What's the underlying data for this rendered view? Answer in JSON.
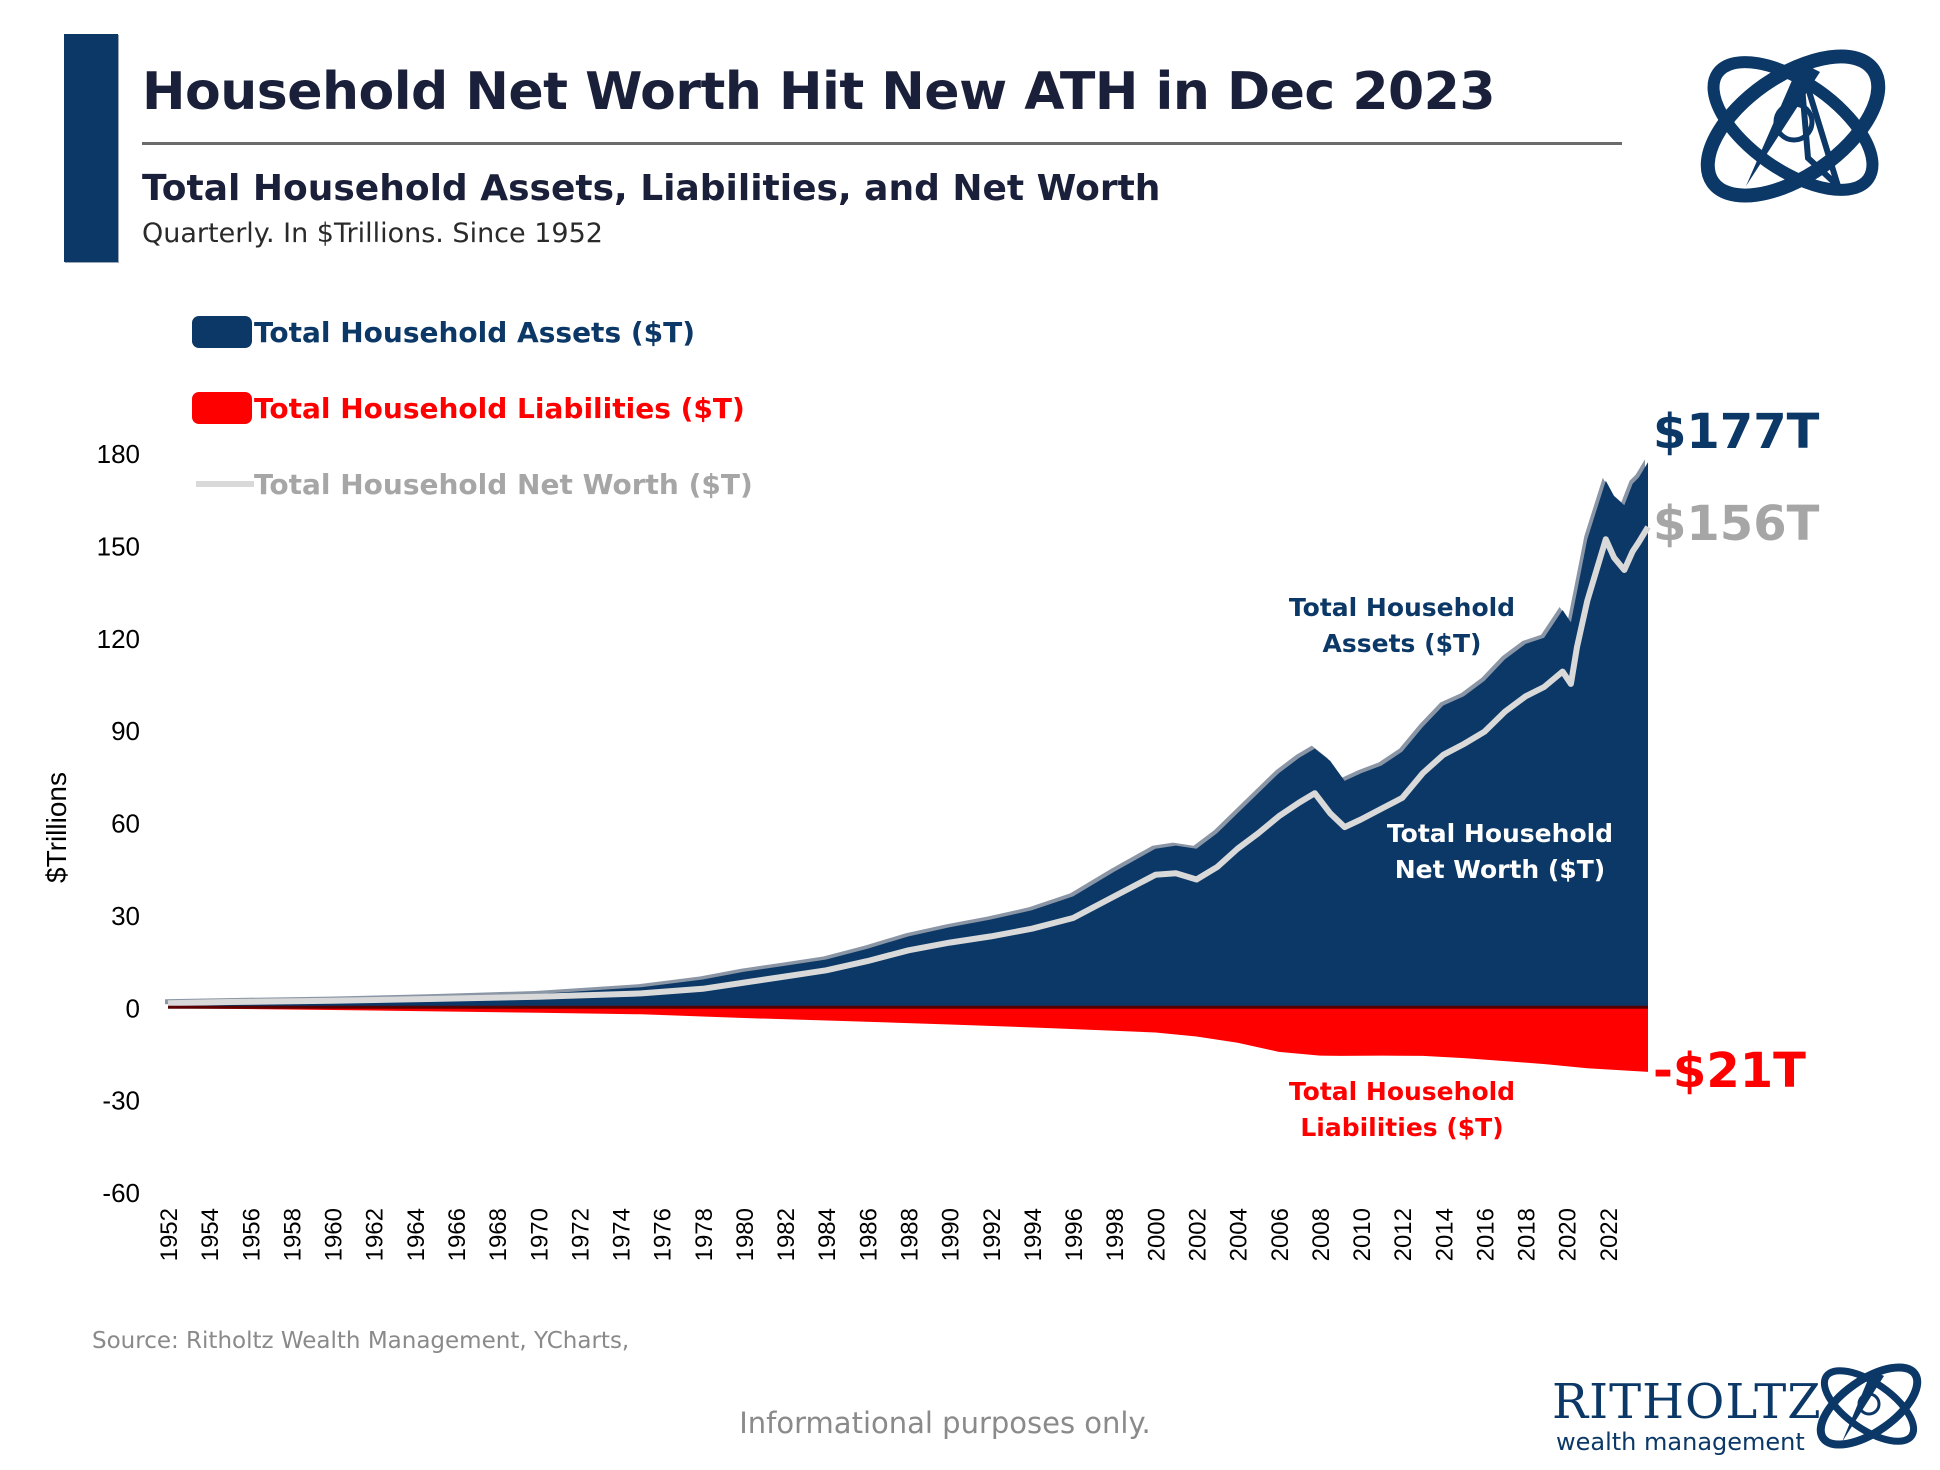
{
  "header": {
    "title": "Household Net Worth Hit New ATH in Dec 2023",
    "subtitle": "Total Household Assets, Liabilities, and Net Worth",
    "note": "Quarterly. In $Trillions. Since 1952"
  },
  "footer": {
    "source": "Source: Ritholtz Wealth Management, YCharts,",
    "disclaimer": "Informational purposes only.",
    "logo_word": "RITHOLTZ",
    "logo_sub": "wealth management"
  },
  "colors": {
    "navy": "#0b3866",
    "red": "#ff0000",
    "gray_line": "#d9d9d9",
    "gray_text": "#a6a6a6",
    "title_text": "#1a1f3a"
  },
  "icons": {
    "brand": "ritholtz-orbit-logo-icon"
  },
  "chart_data": {
    "type": "area",
    "ylabel": "$Trillions",
    "xlabel": "",
    "ylim": [
      -60,
      180
    ],
    "yticks": [
      180,
      150,
      120,
      90,
      60,
      30,
      0,
      -30,
      -60
    ],
    "xticks": [
      "1952",
      "1954",
      "1956",
      "1958",
      "1960",
      "1962",
      "1964",
      "1966",
      "1968",
      "1970",
      "1972",
      "1974",
      "1976",
      "1978",
      "1980",
      "1982",
      "1984",
      "1986",
      "1988",
      "1990",
      "1992",
      "1994",
      "1996",
      "1998",
      "2000",
      "2002",
      "2004",
      "2006",
      "2008",
      "2010",
      "2012",
      "2014",
      "2016",
      "2018",
      "2020",
      "2022"
    ],
    "xrange": [
      1952,
      2023.95
    ],
    "grid": false,
    "legend_position": "top-left",
    "legend": [
      {
        "label": "Total Household Assets ($T)",
        "color": "#0b3866"
      },
      {
        "label": "Total Household Liabilities ($T)",
        "color": "#ff0000"
      },
      {
        "label": "Total Household Net Worth ($T)",
        "color": "#a6a6a6"
      }
    ],
    "series": [
      {
        "name": "Total Household Assets ($T)",
        "color": "#0b3866",
        "points": [
          [
            1952,
            1.6
          ],
          [
            1955,
            2.0
          ],
          [
            1960,
            2.5
          ],
          [
            1965,
            3.3
          ],
          [
            1970,
            4.3
          ],
          [
            1975,
            6.5
          ],
          [
            1978,
            9.0
          ],
          [
            1980,
            11.5
          ],
          [
            1982,
            13.5
          ],
          [
            1984,
            15.5
          ],
          [
            1986,
            19.0
          ],
          [
            1988,
            23.0
          ],
          [
            1990,
            26.0
          ],
          [
            1992,
            28.5
          ],
          [
            1994,
            31.5
          ],
          [
            1996,
            36.0
          ],
          [
            1998,
            44.0
          ],
          [
            2000,
            51.5
          ],
          [
            2001,
            52.5
          ],
          [
            2002,
            51.5
          ],
          [
            2003,
            56.5
          ],
          [
            2004,
            63.0
          ],
          [
            2005,
            69.5
          ],
          [
            2006,
            76.0
          ],
          [
            2007,
            81.0
          ],
          [
            2007.75,
            84.0
          ],
          [
            2008.5,
            80.0
          ],
          [
            2009.2,
            73.5
          ],
          [
            2010,
            76.0
          ],
          [
            2011,
            78.5
          ],
          [
            2012,
            83.0
          ],
          [
            2013,
            91.0
          ],
          [
            2014,
            98.0
          ],
          [
            2015,
            101.0
          ],
          [
            2016,
            106.0
          ],
          [
            2017,
            113.0
          ],
          [
            2018,
            118.0
          ],
          [
            2018.9,
            120.0
          ],
          [
            2019.8,
            129.0
          ],
          [
            2020.2,
            125.0
          ],
          [
            2020.5,
            135.0
          ],
          [
            2021,
            152.0
          ],
          [
            2021.9,
            171.0
          ],
          [
            2022.3,
            166.0
          ],
          [
            2022.8,
            163.0
          ],
          [
            2023.2,
            170.0
          ],
          [
            2023.5,
            172.0
          ],
          [
            2023.95,
            177.0
          ]
        ]
      },
      {
        "name": "Total Household Liabilities ($T)",
        "color": "#ff0000",
        "points": [
          [
            1952,
            -0.3
          ],
          [
            1960,
            -0.9
          ],
          [
            1970,
            -1.8
          ],
          [
            1975,
            -2.3
          ],
          [
            1980,
            -3.5
          ],
          [
            1985,
            -4.5
          ],
          [
            1990,
            -5.6
          ],
          [
            1995,
            -6.8
          ],
          [
            2000,
            -8.2
          ],
          [
            2002,
            -9.5
          ],
          [
            2004,
            -11.5
          ],
          [
            2006,
            -14.5
          ],
          [
            2008,
            -15.7
          ],
          [
            2009,
            -15.8
          ],
          [
            2011,
            -15.7
          ],
          [
            2013,
            -15.8
          ],
          [
            2015,
            -16.5
          ],
          [
            2017,
            -17.5
          ],
          [
            2019,
            -18.5
          ],
          [
            2021,
            -19.8
          ],
          [
            2023.95,
            -21.0
          ]
        ]
      },
      {
        "name": "Total Household Net Worth ($T)",
        "color": "#d9d9d9",
        "points": [
          [
            1952,
            1.3
          ],
          [
            1955,
            1.7
          ],
          [
            1960,
            2.1
          ],
          [
            1965,
            2.7
          ],
          [
            1970,
            3.4
          ],
          [
            1975,
            4.5
          ],
          [
            1978,
            6.0
          ],
          [
            1980,
            8.0
          ],
          [
            1982,
            10.0
          ],
          [
            1984,
            12.0
          ],
          [
            1986,
            15.0
          ],
          [
            1988,
            18.5
          ],
          [
            1990,
            21.0
          ],
          [
            1992,
            23.0
          ],
          [
            1994,
            25.5
          ],
          [
            1996,
            29.0
          ],
          [
            1998,
            36.0
          ],
          [
            2000,
            43.0
          ],
          [
            2001,
            43.5
          ],
          [
            2002,
            41.5
          ],
          [
            2003,
            45.5
          ],
          [
            2004,
            51.5
          ],
          [
            2005,
            56.5
          ],
          [
            2006,
            62.0
          ],
          [
            2007,
            66.5
          ],
          [
            2007.75,
            69.5
          ],
          [
            2008.5,
            63.0
          ],
          [
            2009.2,
            58.5
          ],
          [
            2010,
            61.0
          ],
          [
            2011,
            64.5
          ],
          [
            2012,
            68.0
          ],
          [
            2013,
            76.0
          ],
          [
            2014,
            82.0
          ],
          [
            2015,
            85.5
          ],
          [
            2016,
            89.5
          ],
          [
            2017,
            96.0
          ],
          [
            2018,
            101.0
          ],
          [
            2018.9,
            104.0
          ],
          [
            2019.8,
            109.0
          ],
          [
            2020.2,
            105.0
          ],
          [
            2020.5,
            117.0
          ],
          [
            2021,
            132.0
          ],
          [
            2021.9,
            152.0
          ],
          [
            2022.3,
            146.0
          ],
          [
            2022.8,
            142.0
          ],
          [
            2023.2,
            148.0
          ],
          [
            2023.5,
            151.0
          ],
          [
            2023.95,
            156.0
          ]
        ]
      }
    ],
    "end_labels": [
      {
        "series": "Total Household Assets ($T)",
        "text": "$177T",
        "color": "#0b3866"
      },
      {
        "series": "Total Household Net Worth ($T)",
        "text": "$156T",
        "color": "#a6a6a6"
      },
      {
        "series": "Total Household Liabilities ($T)",
        "text": "-$21T",
        "color": "#ff0000"
      }
    ],
    "annotations": [
      {
        "lines": [
          "Total Household",
          "Assets ($T)"
        ],
        "color": "#0b3866"
      },
      {
        "lines": [
          "Total Household",
          "Net Worth ($T)"
        ],
        "color": "#ffffff"
      },
      {
        "lines": [
          "Total Household",
          "Liabilities ($T)"
        ],
        "color": "#ff0000"
      }
    ]
  }
}
